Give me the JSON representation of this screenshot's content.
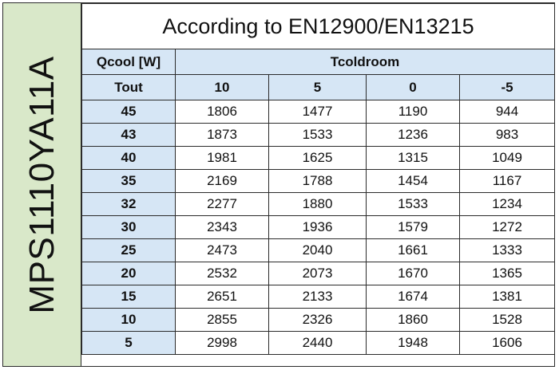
{
  "side_label": "MPS1110YA11A",
  "title": "According to EN12900/EN13215",
  "corner_label": "Qcool [W]",
  "group_header": "Tcoldroom",
  "row_header": "Tout",
  "columns": [
    "10",
    "5",
    "0",
    "-5"
  ],
  "rows": [
    {
      "tout": "45",
      "values": [
        "1806",
        "1477",
        "1190",
        "944"
      ]
    },
    {
      "tout": "43",
      "values": [
        "1873",
        "1533",
        "1236",
        "983"
      ]
    },
    {
      "tout": "40",
      "values": [
        "1981",
        "1625",
        "1315",
        "1049"
      ]
    },
    {
      "tout": "35",
      "values": [
        "2169",
        "1788",
        "1454",
        "1167"
      ]
    },
    {
      "tout": "32",
      "values": [
        "2277",
        "1880",
        "1533",
        "1234"
      ]
    },
    {
      "tout": "30",
      "values": [
        "2343",
        "1936",
        "1579",
        "1272"
      ]
    },
    {
      "tout": "25",
      "values": [
        "2473",
        "2040",
        "1661",
        "1333"
      ]
    },
    {
      "tout": "20",
      "values": [
        "2532",
        "2073",
        "1670",
        "1365"
      ]
    },
    {
      "tout": "15",
      "values": [
        "2651",
        "2133",
        "1674",
        "1381"
      ]
    },
    {
      "tout": "10",
      "values": [
        "2855",
        "2326",
        "1860",
        "1528"
      ]
    },
    {
      "tout": "5",
      "values": [
        "2998",
        "2440",
        "1948",
        "1606"
      ]
    }
  ]
}
